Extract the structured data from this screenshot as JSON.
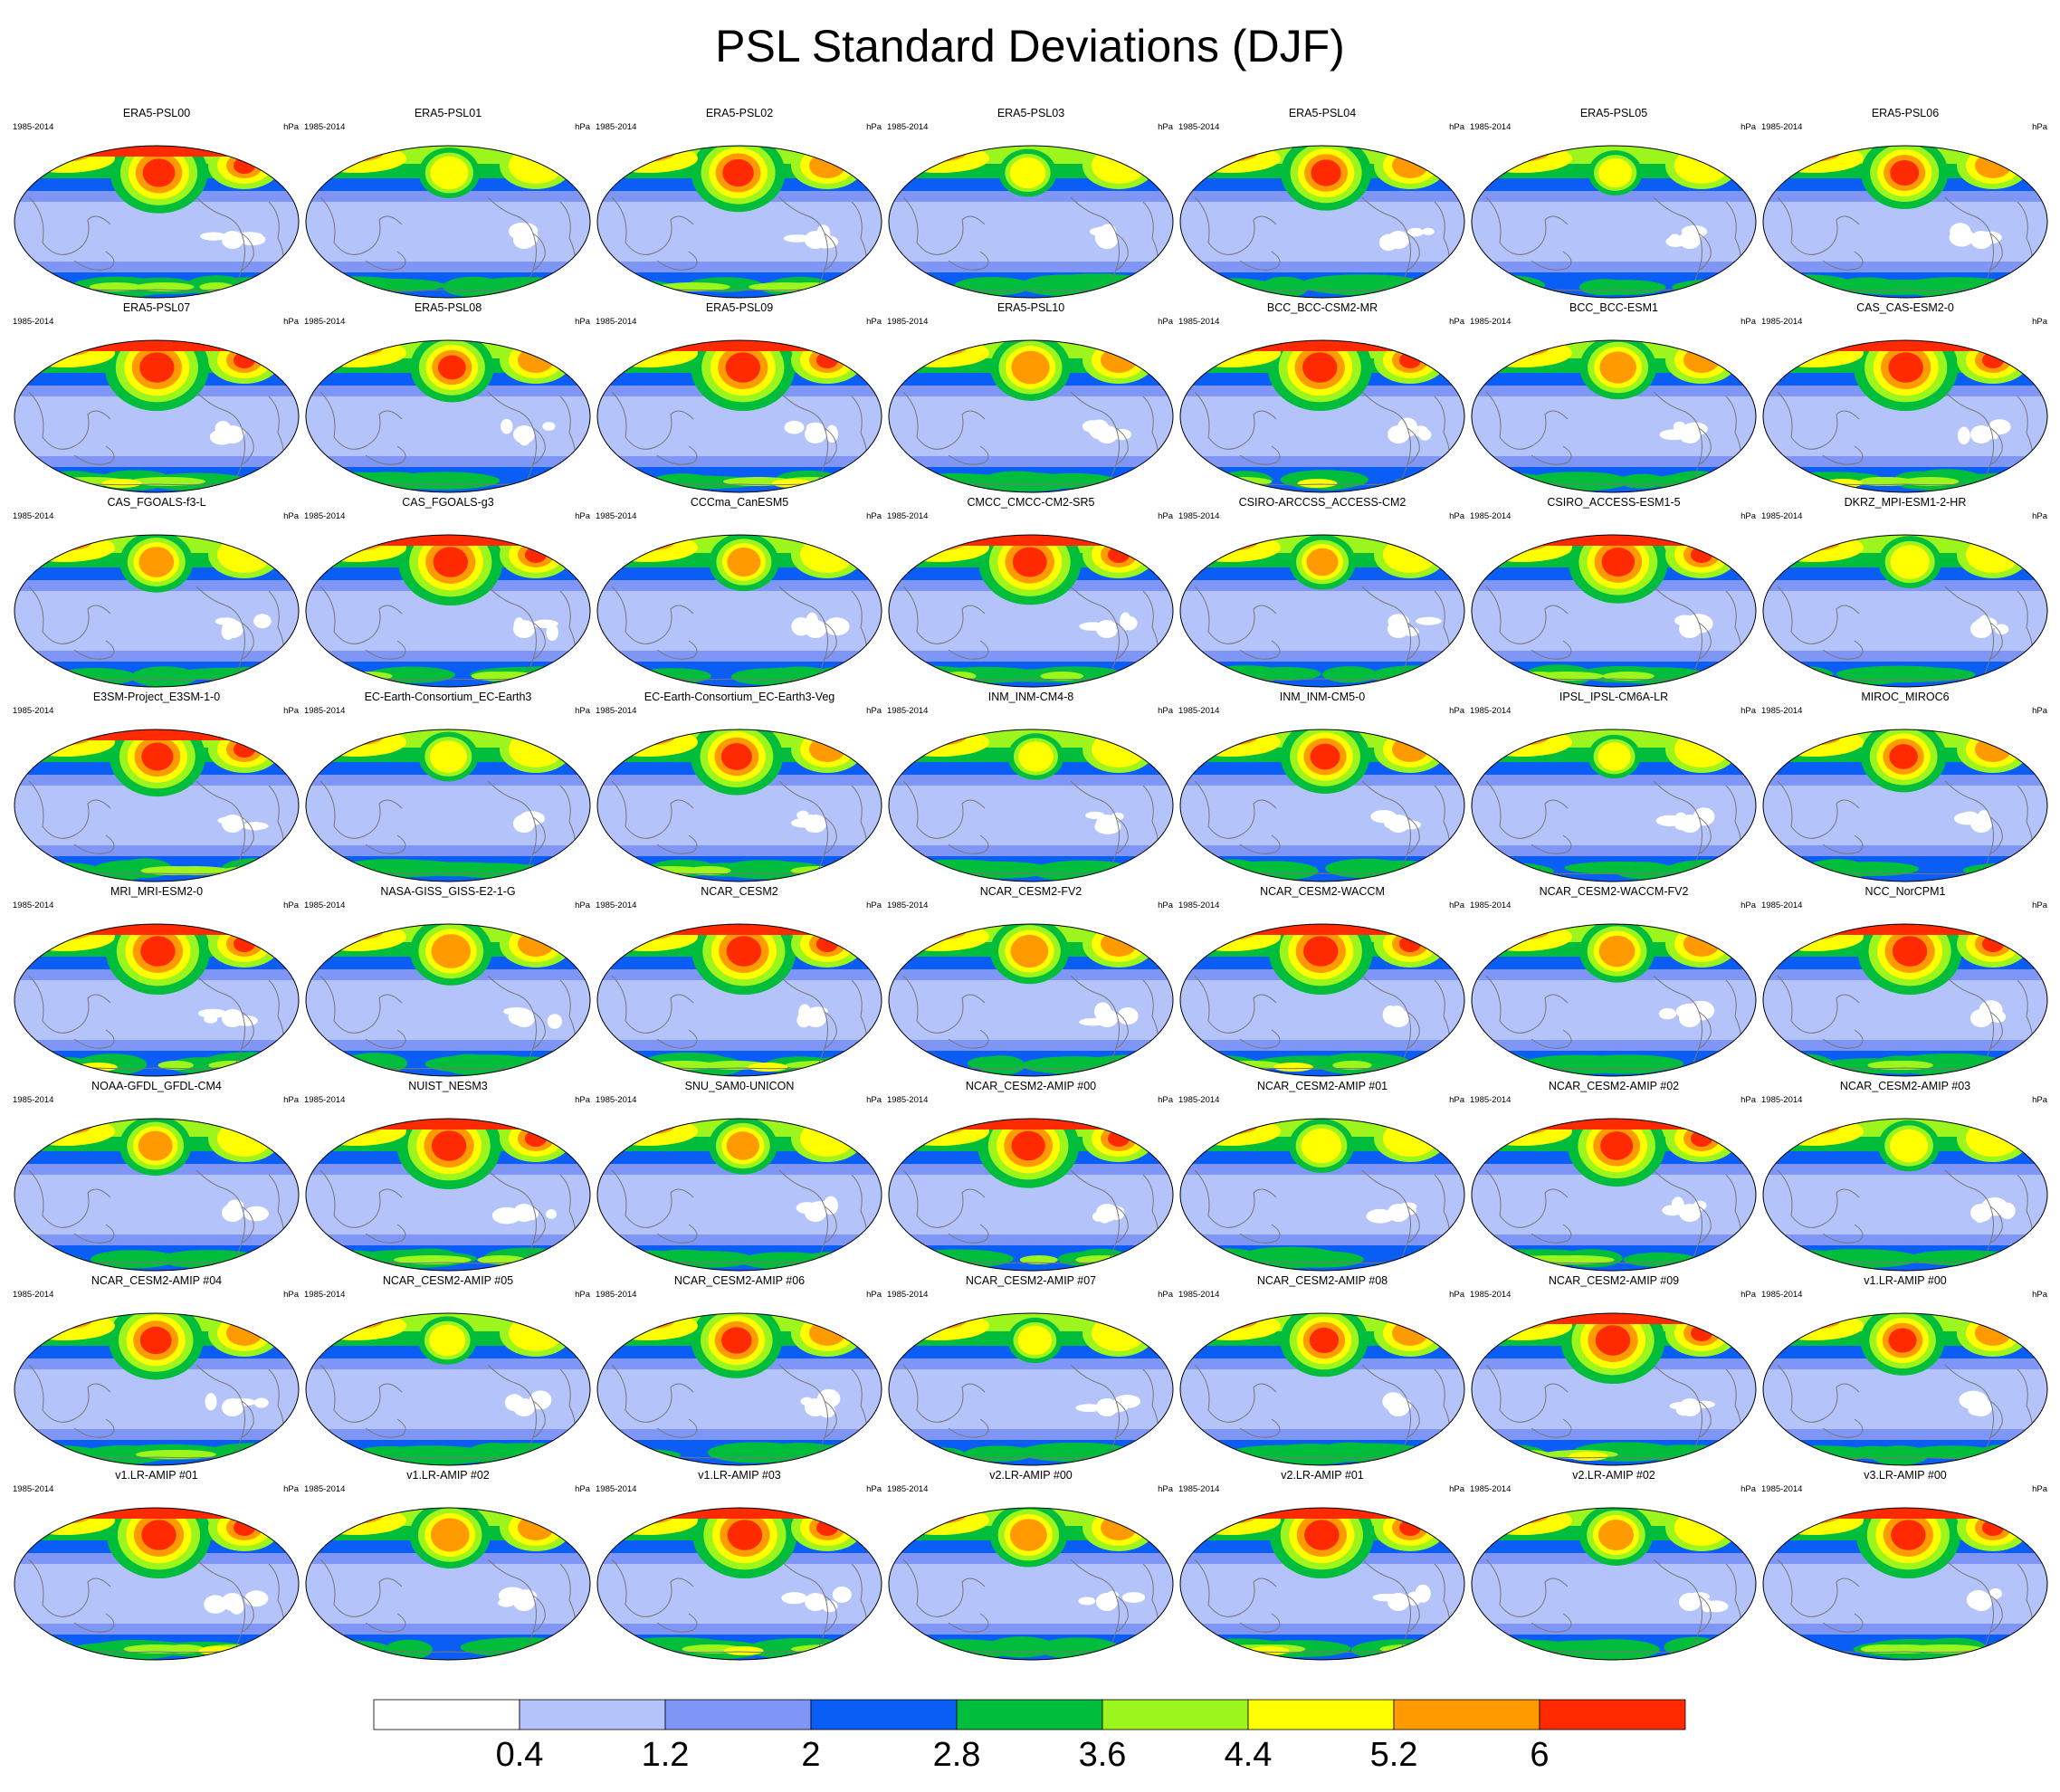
{
  "title": "PSL Standard Deviations (DJF)",
  "chart_data": {
    "type": "heatmap",
    "title": "PSL Standard Deviations (DJF)",
    "projection": "robinson-like global maps, Pacific-centred",
    "grid": "8 rows x 7 columns",
    "period": "1985-2014",
    "units": "hPa",
    "panels": [
      "ERA5-PSL00",
      "ERA5-PSL01",
      "ERA5-PSL02",
      "ERA5-PSL03",
      "ERA5-PSL04",
      "ERA5-PSL05",
      "ERA5-PSL06",
      "ERA5-PSL07",
      "ERA5-PSL08",
      "ERA5-PSL09",
      "ERA5-PSL10",
      "BCC_BCC-CSM2-MR",
      "BCC_BCC-ESM1",
      "CAS_CAS-ESM2-0",
      "CAS_FGOALS-f3-L",
      "CAS_FGOALS-g3",
      "CCCma_CanESM5",
      "CMCC_CMCC-CM2-SR5",
      "CSIRO-ARCCSS_ACCESS-CM2",
      "CSIRO_ACCESS-ESM1-5",
      "DKRZ_MPI-ESM1-2-HR",
      "E3SM-Project_E3SM-1-0",
      "EC-Earth-Consortium_EC-Earth3",
      "EC-Earth-Consortium_EC-Earth3-Veg",
      "INM_INM-CM4-8",
      "INM_INM-CM5-0",
      "IPSL_IPSL-CM6A-LR",
      "MIROC_MIROC6",
      "MRI_MRI-ESM2-0",
      "NASA-GISS_GISS-E2-1-G",
      "NCAR_CESM2",
      "NCAR_CESM2-FV2",
      "NCAR_CESM2-WACCM",
      "NCAR_CESM2-WACCM-FV2",
      "NCC_NorCPM1",
      "NOAA-GFDL_GFDL-CM4",
      "NUIST_NESM3",
      "SNU_SAM0-UNICON",
      "NCAR_CESM2-AMIP  #00",
      "NCAR_CESM2-AMIP  #01",
      "NCAR_CESM2-AMIP  #02",
      "NCAR_CESM2-AMIP  #03",
      "NCAR_CESM2-AMIP  #04",
      "NCAR_CESM2-AMIP  #05",
      "NCAR_CESM2-AMIP  #06",
      "NCAR_CESM2-AMIP  #07",
      "NCAR_CESM2-AMIP  #08",
      "NCAR_CESM2-AMIP  #09",
      "v1.LR-AMIP  #00",
      "v1.LR-AMIP  #01",
      "v1.LR-AMIP  #02",
      "v1.LR-AMIP  #03",
      "v2.LR-AMIP  #00",
      "v2.LR-AMIP  #01",
      "v2.LR-AMIP  #02",
      "v3.LR-AMIP  #00"
    ],
    "colorbar": {
      "labels": [
        "0.4",
        "1.2",
        "2",
        "2.8",
        "3.6",
        "4.4",
        "5.2",
        "6"
      ],
      "colors": [
        "#ffffff",
        "#b4c3fa",
        "#7f96f7",
        "#0a5ef5",
        "#00be3c",
        "#9cf51d",
        "#ffff00",
        "#ff9b00",
        "#ff2a00"
      ]
    }
  }
}
